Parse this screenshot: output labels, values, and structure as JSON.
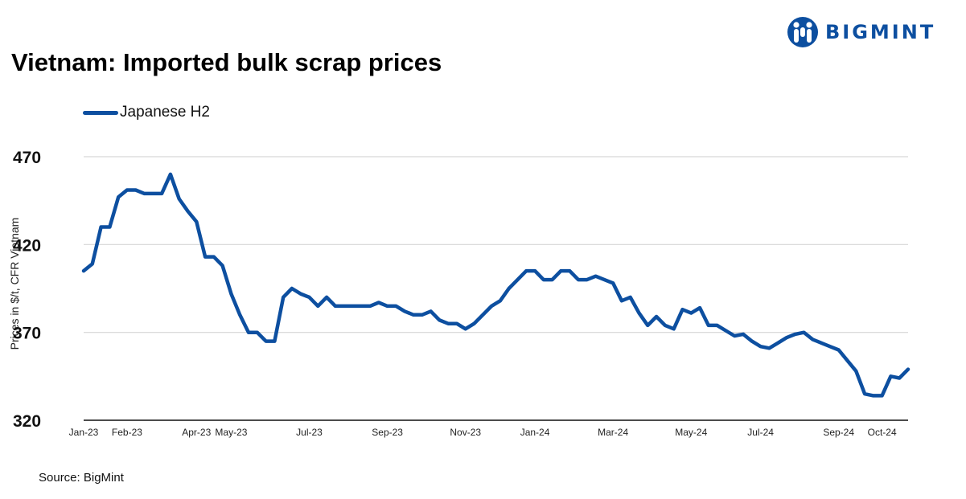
{
  "brand": {
    "name": "BIGMINT",
    "color": "#0d4fa0"
  },
  "source": "Source: BigMint",
  "chart_data": {
    "type": "line",
    "title": "Vietnam: Imported bulk scrap prices",
    "xlabel": "",
    "ylabel": "Prices in $/t, CFR Vietnam",
    "ylim": [
      320,
      470
    ],
    "yticks": [
      320,
      370,
      420,
      470
    ],
    "xlim": [
      "2023-01-02",
      "2024-10-28"
    ],
    "xtick_labels": [
      {
        "label": "Jan-23",
        "date": "2023-01-02"
      },
      {
        "label": "Feb-23",
        "date": "2023-02-06"
      },
      {
        "label": "Apr-23",
        "date": "2023-04-03"
      },
      {
        "label": "May-23",
        "date": "2023-05-01"
      },
      {
        "label": "Jul-23",
        "date": "2023-07-03"
      },
      {
        "label": "Sep-23",
        "date": "2023-09-04"
      },
      {
        "label": "Nov-23",
        "date": "2023-11-06"
      },
      {
        "label": "Jan-24",
        "date": "2024-01-01"
      },
      {
        "label": "Mar-24",
        "date": "2024-03-04"
      },
      {
        "label": "May-24",
        "date": "2024-05-06"
      },
      {
        "label": "Jul-24",
        "date": "2024-07-01"
      },
      {
        "label": "Sep-24",
        "date": "2024-09-02"
      },
      {
        "label": "Oct-24",
        "date": "2024-10-07"
      }
    ],
    "grid": "horizontal",
    "legend_position": "top-left",
    "series": [
      {
        "name": "Japanese H2",
        "color": "#0d4fa0",
        "x": [
          "2023-01-02",
          "2023-01-09",
          "2023-01-16",
          "2023-01-23",
          "2023-01-30",
          "2023-02-06",
          "2023-02-13",
          "2023-02-20",
          "2023-02-27",
          "2023-03-06",
          "2023-03-13",
          "2023-03-20",
          "2023-03-27",
          "2023-04-03",
          "2023-04-10",
          "2023-04-17",
          "2023-04-24",
          "2023-05-01",
          "2023-05-08",
          "2023-05-15",
          "2023-05-22",
          "2023-05-29",
          "2023-06-05",
          "2023-06-12",
          "2023-06-19",
          "2023-06-26",
          "2023-07-03",
          "2023-07-10",
          "2023-07-17",
          "2023-07-24",
          "2023-07-31",
          "2023-08-07",
          "2023-08-14",
          "2023-08-21",
          "2023-08-28",
          "2023-09-04",
          "2023-09-11",
          "2023-09-18",
          "2023-09-25",
          "2023-10-02",
          "2023-10-09",
          "2023-10-16",
          "2023-10-23",
          "2023-10-30",
          "2023-11-06",
          "2023-11-13",
          "2023-11-20",
          "2023-11-27",
          "2023-12-04",
          "2023-12-11",
          "2023-12-18",
          "2023-12-25",
          "2024-01-01",
          "2024-01-08",
          "2024-01-15",
          "2024-01-22",
          "2024-01-29",
          "2024-02-05",
          "2024-02-12",
          "2024-02-19",
          "2024-02-26",
          "2024-03-04",
          "2024-03-11",
          "2024-03-18",
          "2024-03-25",
          "2024-04-01",
          "2024-04-08",
          "2024-04-15",
          "2024-04-22",
          "2024-04-29",
          "2024-05-06",
          "2024-05-13",
          "2024-05-20",
          "2024-05-27",
          "2024-06-03",
          "2024-06-10",
          "2024-06-17",
          "2024-06-24",
          "2024-07-01",
          "2024-07-08",
          "2024-07-15",
          "2024-07-22",
          "2024-07-29",
          "2024-08-05",
          "2024-08-12",
          "2024-08-19",
          "2024-08-26",
          "2024-09-02",
          "2024-09-09",
          "2024-09-16",
          "2024-09-23",
          "2024-09-30",
          "2024-10-07",
          "2024-10-14",
          "2024-10-21",
          "2024-10-28"
        ],
        "values": [
          405,
          409,
          430,
          430,
          447,
          451,
          451,
          449,
          449,
          449,
          460,
          446,
          439,
          433,
          413,
          413,
          408,
          392,
          380,
          370,
          370,
          365,
          365,
          390,
          395,
          392,
          390,
          385,
          390,
          385,
          385,
          385,
          385,
          385,
          387,
          385,
          385,
          382,
          380,
          380,
          382,
          377,
          375,
          375,
          372,
          375,
          380,
          385,
          388,
          395,
          400,
          405,
          405,
          400,
          400,
          405,
          405,
          400,
          400,
          402,
          400,
          398,
          388,
          390,
          381,
          374,
          379,
          374,
          372,
          383,
          381,
          384,
          374,
          374,
          371,
          368,
          369,
          365,
          362,
          361,
          364,
          367,
          369,
          370,
          366,
          364,
          362,
          360,
          354,
          348,
          335,
          334,
          334,
          345,
          344,
          349
        ]
      }
    ]
  }
}
